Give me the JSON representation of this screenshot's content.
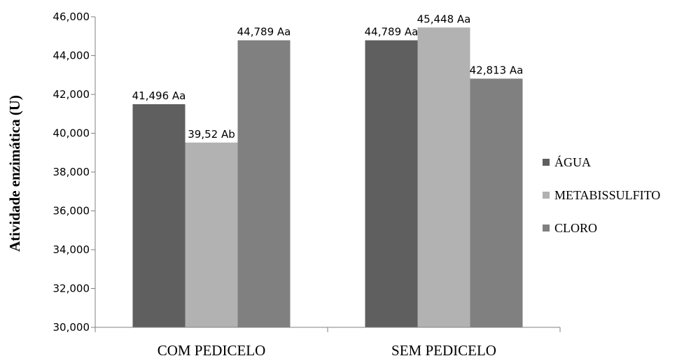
{
  "chart_data": {
    "type": "bar",
    "title": "",
    "xlabel": "",
    "ylabel": "Atividade enzimática (U)",
    "ylim": [
      30,
      46
    ],
    "y_tick_step": 2,
    "y_tick_labels": [
      "30,000",
      "32,000",
      "34,000",
      "36,000",
      "38,000",
      "40,000",
      "42,000",
      "44,000",
      "46,000"
    ],
    "grid": false,
    "legend_position": "right",
    "categories": [
      "COM PEDICELO",
      "SEM PEDICELO"
    ],
    "series": [
      {
        "name": "ÁGUA",
        "color": "#5f5f5f",
        "values": [
          41.496,
          44.789
        ],
        "labels": [
          "41,496 Aa",
          "44,789 Aa"
        ]
      },
      {
        "name": "METABISSULFITO",
        "color": "#b2b2b2",
        "values": [
          39.52,
          45.448
        ],
        "labels": [
          "39,52 Ab",
          "45,448 Aa"
        ]
      },
      {
        "name": "CLORO",
        "color": "#808080",
        "values": [
          44.789,
          42.813
        ],
        "labels": [
          "44,789 Aa",
          "42,813 Aa"
        ]
      }
    ]
  }
}
